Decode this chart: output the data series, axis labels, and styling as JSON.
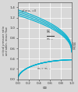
{
  "gammas": [
    1.1,
    1.2,
    1.3,
    1.4
  ],
  "curve_color": "#00b0d0",
  "background_color": "#d8d8d8",
  "grid_color": "#ffffff",
  "spine_color": "#555555",
  "xlim": [
    0,
    1.0
  ],
  "ylim": [
    0,
    1.5
  ],
  "yticks": [
    0.0,
    0.2,
    0.4,
    0.6,
    0.8,
    1.0,
    1.2,
    1.4
  ],
  "xticks": [
    0.0,
    0.2,
    0.4,
    0.6,
    0.8,
    1.0
  ],
  "xlabel": "α₀",
  "annotation_gamma": "γ for α₀ = 0",
  "label_eta": "ηC",
  "label_mdot_ratio": "ṁC / ṁC,0",
  "label_mdot": "ṁC = ṁC,0"
}
